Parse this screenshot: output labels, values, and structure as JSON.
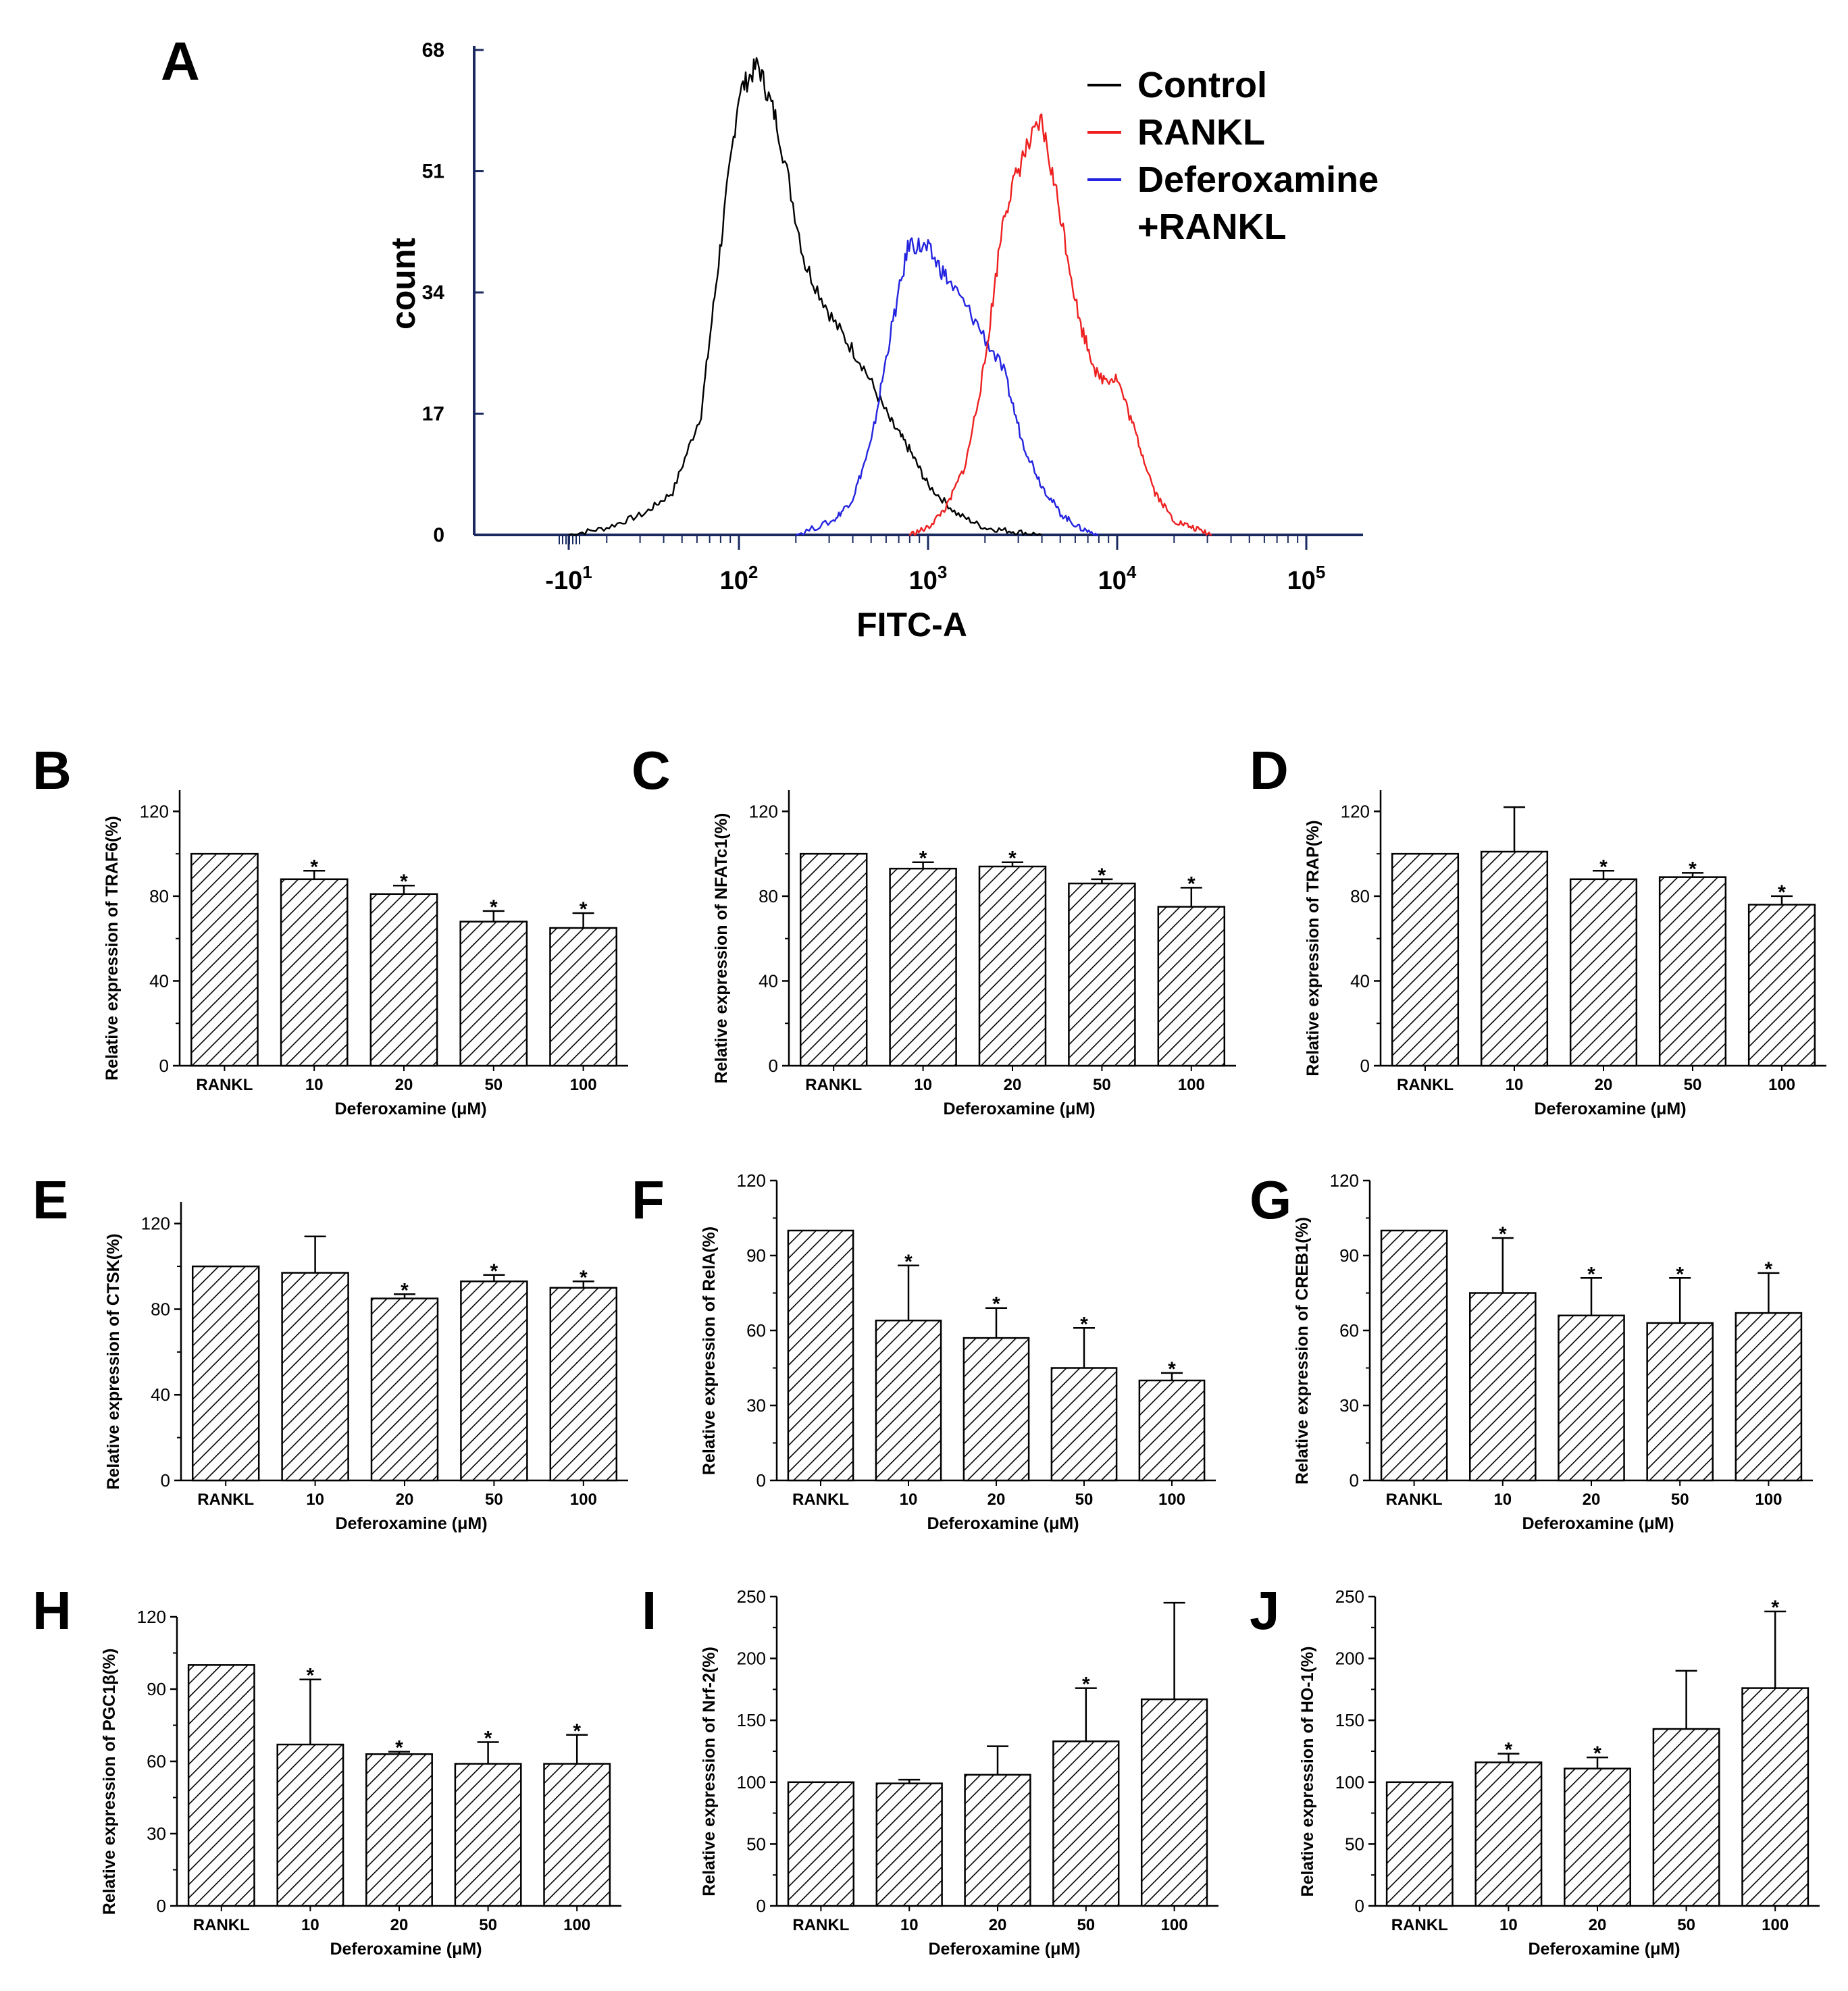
{
  "chart_data": [
    {
      "panel": "A",
      "type": "line",
      "xlabel": "FITC-A",
      "ylabel": "count",
      "ylim": [
        0,
        68
      ],
      "yticks": [
        "0",
        "17",
        "34",
        "51",
        "68"
      ],
      "xticks": [
        {
          "base": "-10",
          "exp": "1",
          "v": 1.1
        },
        {
          "base": "10",
          "exp": "2",
          "v": 2.0
        },
        {
          "base": "10",
          "exp": "3",
          "v": 3.0
        },
        {
          "base": "10",
          "exp": "4",
          "v": 4.0
        },
        {
          "base": "10",
          "exp": "5",
          "v": 5.0
        }
      ],
      "xlim": [
        0.6,
        5.3
      ],
      "legend": [
        {
          "label": "Control",
          "color": "#000000"
        },
        {
          "label": "RANKL",
          "color": "#ee2020"
        },
        {
          "label": "Deferoxamine",
          "label2": "+RANKL",
          "color": "#2424e0"
        }
      ],
      "series": [
        {
          "name": "Control",
          "color": "#000000",
          "x": [
            1.1,
            1.3,
            1.5,
            1.65,
            1.8,
            1.9,
            2.0,
            2.1,
            2.2,
            2.35,
            2.5,
            2.65,
            2.8,
            2.9,
            3.0,
            3.15,
            3.3,
            3.45,
            3.6
          ],
          "y": [
            0,
            1,
            3,
            6,
            17,
            40,
            62,
            66,
            58,
            38,
            30,
            24,
            16,
            12,
            7,
            3,
            1,
            0.5,
            0
          ]
        },
        {
          "name": "Deferoxamine+RANKL",
          "color": "#2424e0",
          "x": [
            2.3,
            2.5,
            2.6,
            2.7,
            2.8,
            2.9,
            3.0,
            3.1,
            3.25,
            3.4,
            3.5,
            3.6,
            3.7,
            3.8,
            3.9
          ],
          "y": [
            0,
            2,
            5,
            13,
            28,
            41,
            40,
            36,
            30,
            23,
            13,
            7,
            3,
            1,
            0
          ]
        },
        {
          "name": "RANKL",
          "color": "#ee2020",
          "x": [
            2.9,
            3.0,
            3.1,
            3.2,
            3.3,
            3.4,
            3.5,
            3.6,
            3.7,
            3.8,
            3.9,
            4.0,
            4.1,
            4.2,
            4.3,
            4.4,
            4.5
          ],
          "y": [
            0,
            1,
            4,
            10,
            24,
            45,
            53,
            58,
            45,
            30,
            22,
            22,
            14,
            6,
            2,
            1,
            0
          ]
        }
      ]
    },
    {
      "panel": "B",
      "type": "bar",
      "ylabel": "Relative expression of TRAF6(%)",
      "xlabel": "Deferoxamine (μM)",
      "categories": [
        "RANKL",
        "10",
        "20",
        "50",
        "100"
      ],
      "values": [
        100,
        88,
        81,
        68,
        65
      ],
      "errors": [
        0,
        4,
        4,
        5,
        7
      ],
      "sig": [
        false,
        true,
        true,
        true,
        true
      ],
      "ylim": [
        0,
        130
      ],
      "yticks": [
        0,
        40,
        80,
        120
      ]
    },
    {
      "panel": "C",
      "type": "bar",
      "ylabel": "Relative expression of NFATc1(%)",
      "xlabel": "Deferoxamine (μM)",
      "categories": [
        "RANKL",
        "10",
        "20",
        "50",
        "100"
      ],
      "values": [
        100,
        93,
        94,
        86,
        75
      ],
      "errors": [
        0,
        3,
        2,
        2,
        9
      ],
      "sig": [
        false,
        true,
        true,
        true,
        true
      ],
      "ylim": [
        0,
        130
      ],
      "yticks": [
        0,
        40,
        80,
        120
      ]
    },
    {
      "panel": "D",
      "type": "bar",
      "ylabel": "Relative expression of TRAP(%)",
      "xlabel": "Deferoxamine (μM)",
      "categories": [
        "RANKL",
        "10",
        "20",
        "50",
        "100"
      ],
      "values": [
        100,
        101,
        88,
        89,
        76
      ],
      "errors": [
        0,
        21,
        4,
        2,
        4
      ],
      "sig": [
        false,
        false,
        true,
        true,
        true
      ],
      "ylim": [
        0,
        130
      ],
      "yticks": [
        0,
        40,
        80,
        120
      ]
    },
    {
      "panel": "E",
      "type": "bar",
      "ylabel": "Relative expression of CTSK(%)",
      "xlabel": "Deferoxamine (μM)",
      "categories": [
        "RANKL",
        "10",
        "20",
        "50",
        "100"
      ],
      "values": [
        100,
        97,
        85,
        93,
        90
      ],
      "errors": [
        0,
        17,
        2,
        3,
        3
      ],
      "sig": [
        false,
        false,
        true,
        true,
        true
      ],
      "ylim": [
        0,
        130
      ],
      "yticks": [
        0,
        40,
        80,
        120
      ]
    },
    {
      "panel": "F",
      "type": "bar",
      "ylabel": "Relative expression of RelA(%)",
      "xlabel": "Deferoxamine (μM)",
      "categories": [
        "RANKL",
        "10",
        "20",
        "50",
        "100"
      ],
      "values": [
        100,
        64,
        57,
        45,
        40
      ],
      "errors": [
        0,
        22,
        12,
        16,
        3
      ],
      "sig": [
        false,
        true,
        true,
        true,
        true
      ],
      "ylim": [
        0,
        120
      ],
      "yticks": [
        0,
        30,
        60,
        90,
        120
      ]
    },
    {
      "panel": "G",
      "type": "bar",
      "ylabel": "Relative expression of CREB1(%)",
      "xlabel": "Deferoxamine (μM)",
      "categories": [
        "RANKL",
        "10",
        "20",
        "50",
        "100"
      ],
      "values": [
        100,
        75,
        66,
        63,
        67
      ],
      "errors": [
        0,
        22,
        15,
        18,
        16
      ],
      "sig": [
        false,
        true,
        true,
        true,
        true
      ],
      "ylim": [
        0,
        120
      ],
      "yticks": [
        0,
        30,
        60,
        90,
        120
      ]
    },
    {
      "panel": "H",
      "type": "bar",
      "ylabel": "Relative expression of PGC1β(%)",
      "xlabel": "Deferoxamine (μM)",
      "categories": [
        "RANKL",
        "10",
        "20",
        "50",
        "100"
      ],
      "values": [
        100,
        67,
        63,
        59,
        59
      ],
      "errors": [
        0,
        27,
        1,
        9,
        12
      ],
      "sig": [
        false,
        true,
        true,
        true,
        true
      ],
      "ylim": [
        0,
        120
      ],
      "yticks": [
        0,
        30,
        60,
        90,
        120
      ]
    },
    {
      "panel": "I",
      "type": "bar",
      "ylabel": "Relative expression of Nrf-2(%)",
      "xlabel": "Deferoxamine (μM)",
      "categories": [
        "RANKL",
        "10",
        "20",
        "50",
        "100"
      ],
      "values": [
        100,
        99,
        106,
        133,
        167
      ],
      "errors": [
        0,
        3,
        23,
        43,
        78
      ],
      "sig": [
        false,
        false,
        false,
        true,
        false
      ],
      "ylim": [
        0,
        250
      ],
      "yticks": [
        0,
        50,
        100,
        150,
        200,
        250
      ]
    },
    {
      "panel": "J",
      "type": "bar",
      "ylabel": "Relative expression of HO-1(%)",
      "xlabel": "Deferoxamine (μM)",
      "categories": [
        "RANKL",
        "10",
        "20",
        "50",
        "100"
      ],
      "values": [
        100,
        116,
        111,
        143,
        176
      ],
      "errors": [
        0,
        7,
        9,
        47,
        62
      ],
      "sig": [
        false,
        true,
        true,
        false,
        true
      ],
      "ylim": [
        0,
        250
      ],
      "yticks": [
        0,
        50,
        100,
        150,
        200,
        250
      ]
    }
  ]
}
